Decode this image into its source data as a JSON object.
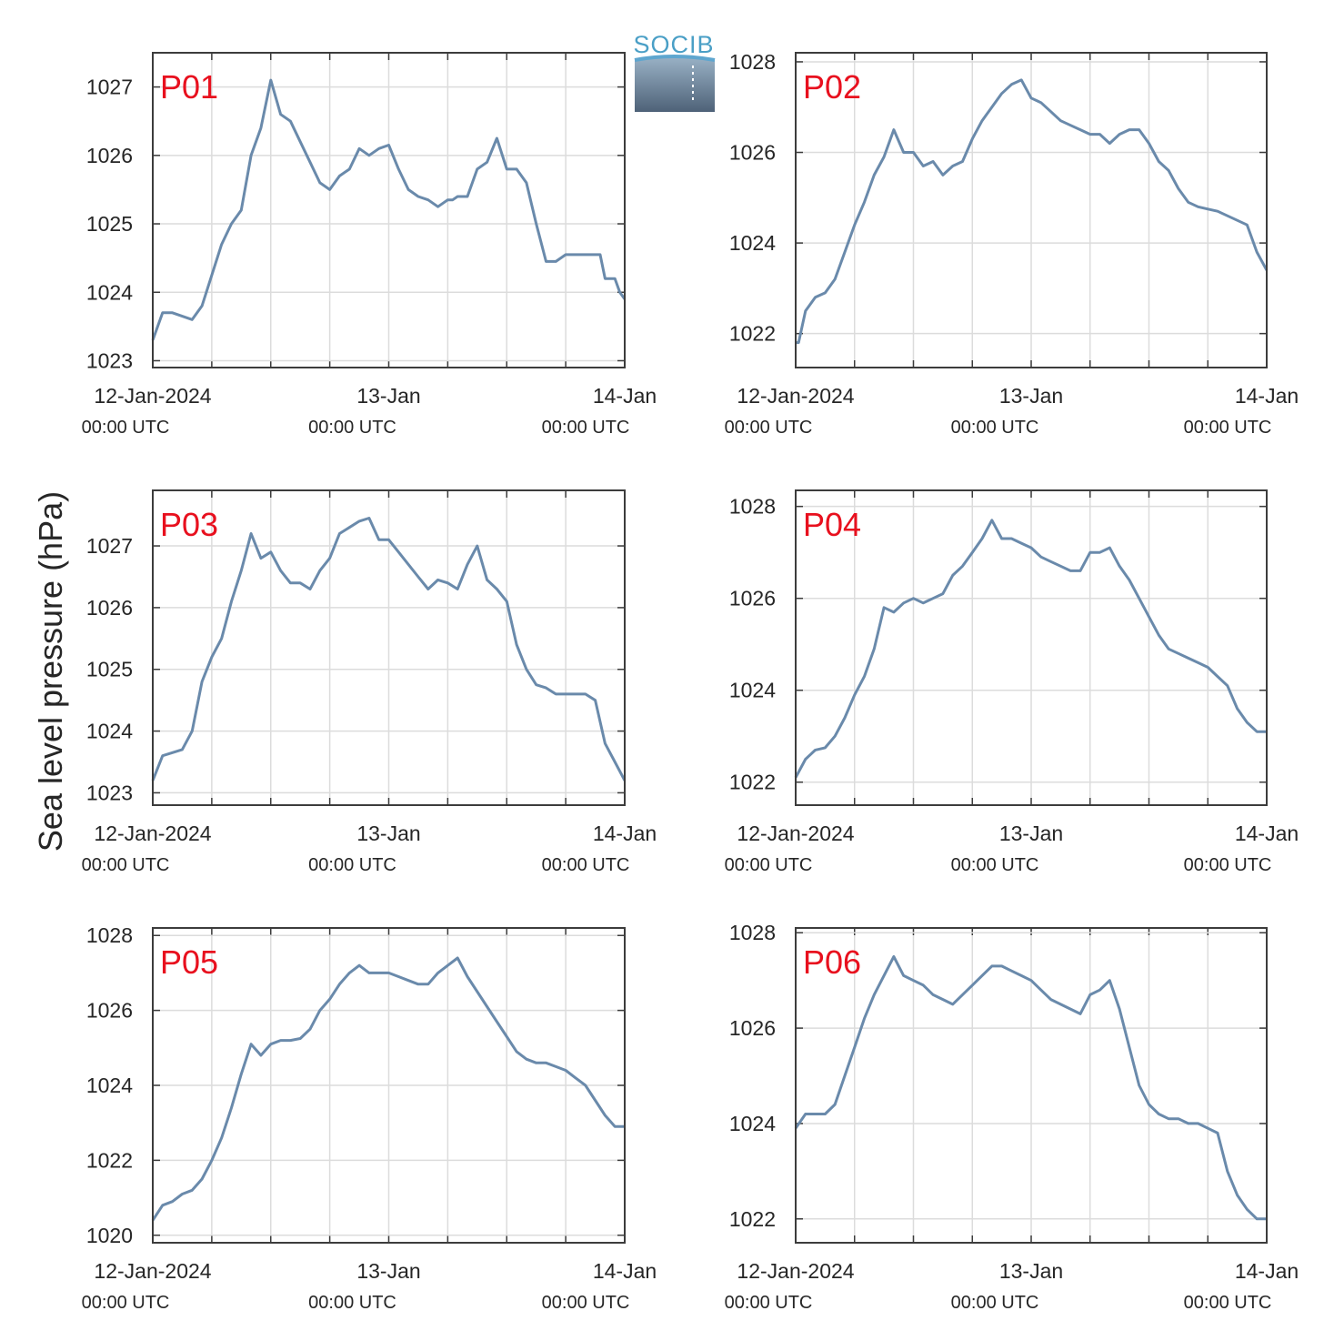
{
  "figure": {
    "ylabel": "Sea level pressure (hPa)",
    "logo_text": "SOCIB",
    "colors": {
      "line": "#6a8aab",
      "tag": "#e8101e",
      "grid": "#dcdcdc",
      "axis": "#3c3c3c"
    }
  },
  "chart_data": [
    {
      "type": "line",
      "name": "P01",
      "x_ticks": [
        "12-Jan-2024",
        "13-Jan",
        "14-Jan"
      ],
      "x_tick_sub": [
        "00:00 UTC",
        "00:00 UTC",
        "00:00 UTC"
      ],
      "xlim_hours": [
        0,
        48
      ],
      "ylim": [
        1022.9,
        1027.5
      ],
      "yticks": [
        1023,
        1024,
        1025,
        1026,
        1027
      ],
      "grid": true,
      "x": [
        0,
        1,
        2,
        4,
        5,
        7,
        8,
        9,
        10,
        11,
        12,
        13,
        14,
        15,
        16,
        17,
        18,
        19,
        20,
        21,
        22,
        23,
        24,
        25,
        26,
        27,
        28,
        29,
        30,
        30.5,
        31,
        32,
        33,
        34,
        35,
        36,
        37,
        38,
        38.5,
        39,
        40,
        41,
        42,
        43,
        44,
        45,
        45.5,
        46,
        47,
        47.5,
        48
      ],
      "y": [
        1023.3,
        1023.7,
        1023.7,
        1023.6,
        1023.8,
        1024.7,
        1025.0,
        1025.2,
        1026.0,
        1026.4,
        1027.1,
        1026.6,
        1026.5,
        1026.2,
        1025.9,
        1025.6,
        1025.5,
        1025.7,
        1025.8,
        1026.1,
        1026.0,
        1026.1,
        1026.15,
        1025.8,
        1025.5,
        1025.4,
        1025.35,
        1025.25,
        1025.35,
        1025.35,
        1025.4,
        1025.4,
        1025.8,
        1025.9,
        1026.25,
        1025.8,
        1025.8,
        1025.6,
        1025.3,
        1025.0,
        1024.45,
        1024.45,
        1024.55,
        1024.55,
        1024.55,
        1024.55,
        1024.55,
        1024.2,
        1024.2,
        1024.0,
        1023.9
      ]
    },
    {
      "type": "line",
      "name": "P02",
      "x_ticks": [
        "12-Jan-2024",
        "13-Jan",
        "14-Jan"
      ],
      "x_tick_sub": [
        "00:00 UTC",
        "00:00 UTC",
        "00:00 UTC"
      ],
      "xlim_hours": [
        0,
        48
      ],
      "ylim": [
        1021.25,
        1028.2
      ],
      "yticks": [
        1022,
        1024,
        1026,
        1028
      ],
      "grid": true,
      "x": [
        0,
        0.3,
        1,
        2,
        3,
        4,
        5,
        6,
        7,
        8,
        9,
        10,
        11,
        12,
        13,
        14,
        15,
        16,
        17,
        18,
        19,
        20,
        21,
        22,
        23,
        24,
        25,
        26,
        27,
        28,
        29,
        30,
        31,
        32,
        33,
        34,
        35,
        36,
        37,
        38,
        39,
        40,
        41,
        42,
        43,
        44,
        45,
        46,
        47,
        48
      ],
      "y": [
        1021.8,
        1021.8,
        1022.5,
        1022.8,
        1022.9,
        1023.2,
        1023.8,
        1024.4,
        1024.9,
        1025.5,
        1025.9,
        1026.5,
        1026.0,
        1026.0,
        1025.7,
        1025.8,
        1025.5,
        1025.7,
        1025.8,
        1026.3,
        1026.7,
        1027.0,
        1027.3,
        1027.5,
        1027.6,
        1027.2,
        1027.1,
        1026.9,
        1026.7,
        1026.6,
        1026.5,
        1026.4,
        1026.4,
        1026.2,
        1026.4,
        1026.5,
        1026.5,
        1026.2,
        1025.8,
        1025.6,
        1025.2,
        1024.9,
        1024.8,
        1024.75,
        1024.7,
        1024.6,
        1024.5,
        1024.4,
        1023.8,
        1023.4
      ]
    },
    {
      "type": "line",
      "name": "P03",
      "x_ticks": [
        "12-Jan-2024",
        "13-Jan",
        "14-Jan"
      ],
      "x_tick_sub": [
        "00:00 UTC",
        "00:00 UTC",
        "00:00 UTC"
      ],
      "xlim_hours": [
        0,
        48
      ],
      "ylim": [
        1022.8,
        1027.9
      ],
      "yticks": [
        1023,
        1024,
        1025,
        1026,
        1027
      ],
      "grid": true,
      "x": [
        0,
        1,
        2,
        3,
        4,
        5,
        6,
        7,
        8,
        9,
        10,
        11,
        12,
        13,
        14,
        15,
        16,
        17,
        18,
        19,
        20,
        21,
        22,
        23,
        24,
        25,
        26,
        27,
        28,
        29,
        30,
        31,
        32,
        33,
        34,
        35,
        36,
        37,
        38,
        39,
        40,
        41,
        42,
        43,
        44,
        45,
        46,
        47,
        48
      ],
      "y": [
        1023.2,
        1023.6,
        1023.65,
        1023.7,
        1024.0,
        1024.8,
        1025.2,
        1025.5,
        1026.1,
        1026.6,
        1027.2,
        1026.8,
        1026.9,
        1026.6,
        1026.4,
        1026.4,
        1026.3,
        1026.6,
        1026.8,
        1027.2,
        1027.3,
        1027.4,
        1027.45,
        1027.1,
        1027.1,
        1026.9,
        1026.7,
        1026.5,
        1026.3,
        1026.45,
        1026.4,
        1026.3,
        1026.7,
        1027.0,
        1026.45,
        1026.3,
        1026.1,
        1025.4,
        1025.0,
        1024.75,
        1024.7,
        1024.6,
        1024.6,
        1024.6,
        1024.6,
        1024.5,
        1023.8,
        1023.5,
        1023.2
      ]
    },
    {
      "type": "line",
      "name": "P04",
      "x_ticks": [
        "12-Jan-2024",
        "13-Jan",
        "14-Jan"
      ],
      "x_tick_sub": [
        "00:00 UTC",
        "00:00 UTC",
        "00:00 UTC"
      ],
      "xlim_hours": [
        0,
        48
      ],
      "ylim": [
        1021.5,
        1028.35
      ],
      "yticks": [
        1022,
        1024,
        1026,
        1028
      ],
      "grid": true,
      "x": [
        0,
        1,
        2,
        3,
        4,
        5,
        6,
        7,
        8,
        9,
        10,
        11,
        12,
        13,
        14,
        15,
        16,
        17,
        18,
        19,
        20,
        21,
        22,
        23,
        24,
        25,
        26,
        27,
        28,
        29,
        30,
        31,
        32,
        33,
        34,
        35,
        36,
        37,
        38,
        39,
        40,
        41,
        42,
        43,
        44,
        45,
        46,
        47,
        48
      ],
      "y": [
        1022.1,
        1022.5,
        1022.7,
        1022.75,
        1023.0,
        1023.4,
        1023.9,
        1024.3,
        1024.9,
        1025.8,
        1025.7,
        1025.9,
        1026.0,
        1025.9,
        1026.0,
        1026.1,
        1026.5,
        1026.7,
        1027.0,
        1027.3,
        1027.7,
        1027.3,
        1027.3,
        1027.2,
        1027.1,
        1026.9,
        1026.8,
        1026.7,
        1026.6,
        1026.6,
        1027.0,
        1027.0,
        1027.1,
        1026.7,
        1026.4,
        1026.0,
        1025.6,
        1025.2,
        1024.9,
        1024.8,
        1024.7,
        1024.6,
        1024.5,
        1024.3,
        1024.1,
        1023.6,
        1023.3,
        1023.1,
        1023.1
      ]
    },
    {
      "type": "line",
      "name": "P05",
      "x_ticks": [
        "12-Jan-2024",
        "13-Jan",
        "14-Jan"
      ],
      "x_tick_sub": [
        "00:00 UTC",
        "00:00 UTC",
        "00:00 UTC"
      ],
      "xlim_hours": [
        0,
        48
      ],
      "ylim": [
        1019.8,
        1028.2
      ],
      "yticks": [
        1020,
        1022,
        1024,
        1026,
        1028
      ],
      "grid": true,
      "x": [
        0,
        1,
        2,
        3,
        4,
        5,
        6,
        7,
        8,
        9,
        10,
        11,
        12,
        13,
        14,
        15,
        16,
        17,
        18,
        19,
        20,
        21,
        22,
        23,
        24,
        25,
        26,
        27,
        28,
        29,
        30,
        31,
        32,
        33,
        34,
        35,
        36,
        37,
        38,
        39,
        40,
        41,
        42,
        43,
        44,
        45,
        46,
        47,
        48
      ],
      "y": [
        1020.4,
        1020.8,
        1020.9,
        1021.1,
        1021.2,
        1021.5,
        1022.0,
        1022.6,
        1023.4,
        1024.3,
        1025.1,
        1024.8,
        1025.1,
        1025.2,
        1025.2,
        1025.25,
        1025.5,
        1026.0,
        1026.3,
        1026.7,
        1027.0,
        1027.2,
        1027.0,
        1027.0,
        1027.0,
        1026.9,
        1026.8,
        1026.7,
        1026.7,
        1027.0,
        1027.2,
        1027.4,
        1026.9,
        1026.5,
        1026.1,
        1025.7,
        1025.3,
        1024.9,
        1024.7,
        1024.6,
        1024.6,
        1024.5,
        1024.4,
        1024.2,
        1024.0,
        1023.6,
        1023.2,
        1022.9,
        1022.9
      ]
    },
    {
      "type": "line",
      "name": "P06",
      "x_ticks": [
        "12-Jan-2024",
        "13-Jan",
        "14-Jan"
      ],
      "x_tick_sub": [
        "00:00 UTC",
        "00:00 UTC",
        "00:00 UTC"
      ],
      "xlim_hours": [
        0,
        48
      ],
      "ylim": [
        1021.5,
        1028.1
      ],
      "yticks": [
        1022,
        1024,
        1026,
        1028
      ],
      "grid": true,
      "x": [
        0,
        1,
        2,
        3,
        4,
        5,
        6,
        7,
        8,
        9,
        10,
        11,
        12,
        13,
        14,
        15,
        16,
        17,
        18,
        19,
        20,
        21,
        22,
        23,
        24,
        25,
        26,
        27,
        28,
        29,
        30,
        31,
        32,
        33,
        34,
        35,
        36,
        37,
        38,
        39,
        40,
        41,
        42,
        43,
        44,
        45,
        46,
        47,
        48
      ],
      "y": [
        1023.9,
        1024.2,
        1024.2,
        1024.2,
        1024.4,
        1025.0,
        1025.6,
        1026.2,
        1026.7,
        1027.1,
        1027.5,
        1027.1,
        1027.0,
        1026.9,
        1026.7,
        1026.6,
        1026.5,
        1026.7,
        1026.9,
        1027.1,
        1027.3,
        1027.3,
        1027.2,
        1027.1,
        1027.0,
        1026.8,
        1026.6,
        1026.5,
        1026.4,
        1026.3,
        1026.7,
        1026.8,
        1027.0,
        1026.4,
        1025.6,
        1024.8,
        1024.4,
        1024.2,
        1024.1,
        1024.1,
        1024.0,
        1024.0,
        1023.9,
        1023.8,
        1023.0,
        1022.5,
        1022.2,
        1022.0,
        1022.0
      ]
    }
  ]
}
